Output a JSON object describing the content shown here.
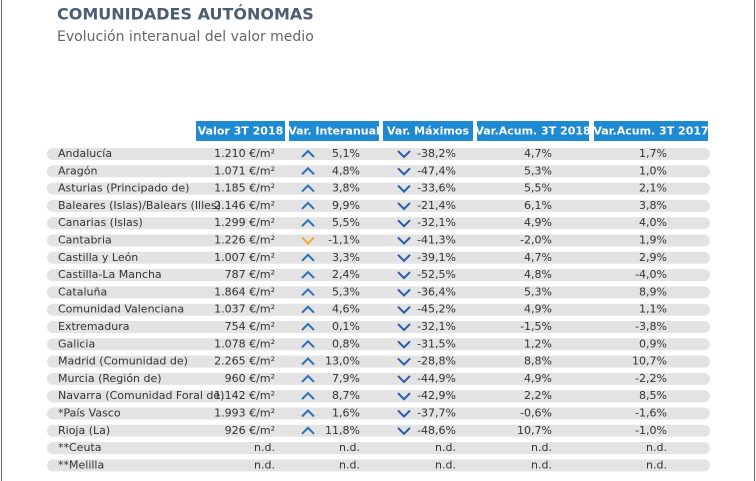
{
  "header": {
    "title": "COMUNIDADES AUTÓNOMAS",
    "subtitle": "Evolución interanual del valor medio"
  },
  "table": {
    "columns": [
      "Valor 3T 2018",
      "Var. Interanual",
      "Var. Máximos",
      "Var.Acum. 3T 2018",
      "Var.Acum. 3T 2017"
    ],
    "rows": [
      [
        "Andalucía",
        "1.210 €/m²",
        "5,1%",
        "-38,2%",
        "4,7%",
        "1,7%"
      ],
      [
        "Aragón",
        "1.071 €/m²",
        "4,8%",
        "-47,4%",
        "5,3%",
        "1,0%"
      ],
      [
        "Asturias (Principado de)",
        "1.185 €/m²",
        "3,8%",
        "-33,6%",
        "5,5%",
        "2,1%"
      ],
      [
        "Baleares (Islas)/Balears (Illes)",
        "2.146 €/m²",
        "9,9%",
        "-21,4%",
        "6,1%",
        "3,8%"
      ],
      [
        "Canarias (Islas)",
        "1.299 €/m²",
        "5,5%",
        "-32,1%",
        "4,9%",
        "4,0%"
      ],
      [
        "Cantabria",
        "1.226 €/m²",
        "-1,1%",
        "-41,3%",
        "-2,0%",
        "1,9%"
      ],
      [
        "Castilla y León",
        "1.007 €/m²",
        "3,3%",
        "-39,1%",
        "4,7%",
        "2,9%"
      ],
      [
        "Castilla-La Mancha",
        "787 €/m²",
        "2,4%",
        "-52,5%",
        "4,8%",
        "-4,0%"
      ],
      [
        "Cataluña",
        "1.864 €/m²",
        "5,3%",
        "-36,4%",
        "5,3%",
        "8,9%"
      ],
      [
        "Comunidad Valenciana",
        "1.037 €/m²",
        "4,6%",
        "-45,2%",
        "4,9%",
        "1,1%"
      ],
      [
        "Extremadura",
        "754 €/m²",
        "0,1%",
        "-32,1%",
        "-1,5%",
        "-3,8%"
      ],
      [
        "Galicia",
        "1.078 €/m²",
        "0,8%",
        "-31,5%",
        "1,2%",
        "0,9%"
      ],
      [
        "Madrid (Comunidad de)",
        "2.265 €/m²",
        "13,0%",
        "-28,8%",
        "8,8%",
        "10,7%"
      ],
      [
        "Murcia (Región de)",
        "960 €/m²",
        "7,9%",
        "-44,9%",
        "4,9%",
        "-2,2%"
      ],
      [
        "Navarra (Comunidad Foral de)",
        "1.142 €/m²",
        "8,7%",
        "-42,9%",
        "2,2%",
        "8,5%"
      ],
      [
        "*País Vasco",
        "1.993 €/m²",
        "1,6%",
        "-37,7%",
        "-0,6%",
        "-1,6%"
      ],
      [
        "Rioja (La)",
        "926 €/m²",
        "11,8%",
        "-48,6%",
        "10,7%",
        "-1,0%"
      ],
      [
        "**Ceuta",
        "n.d.",
        "n.d.",
        "n.d.",
        "n.d.",
        "n.d."
      ],
      [
        "**Melilla",
        "n.d.",
        "n.d.",
        "n.d.",
        "n.d.",
        "n.d."
      ]
    ]
  }
}
